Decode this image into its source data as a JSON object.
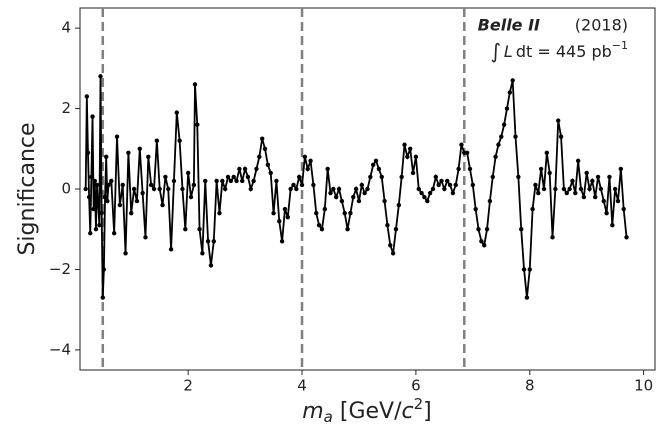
{
  "chart_data": {
    "type": "line",
    "x_label": [
      "m",
      "a",
      " [GeV/",
      "c",
      "2",
      "]"
    ],
    "y_label": "Significance",
    "annotation": {
      "experiment": "Belle II",
      "year": "(2018)",
      "luminosity": [
        "∫",
        "L",
        "dt = 445 pb",
        "−1"
      ]
    },
    "vlines": [
      0.5,
      4.0,
      6.85
    ],
    "xlim": [
      0.1,
      10.2
    ],
    "ylim": [
      -4.5,
      4.5
    ],
    "xticks": [
      2,
      4,
      6,
      8,
      10
    ],
    "yticks": [
      {
        "value": -4,
        "label": "−4"
      },
      {
        "value": -2,
        "label": "−2"
      },
      0,
      2,
      4
    ],
    "series": [
      {
        "color": "#000000",
        "x": [
          0.2,
          0.22,
          0.24,
          0.26,
          0.28,
          0.3,
          0.32,
          0.34,
          0.36,
          0.38,
          0.4,
          0.42,
          0.44,
          0.46,
          0.48,
          0.5,
          0.52,
          0.54,
          0.56,
          0.58,
          0.6,
          0.65,
          0.7,
          0.75,
          0.8,
          0.85,
          0.9,
          0.95,
          1.0,
          1.05,
          1.1,
          1.15,
          1.2,
          1.25,
          1.3,
          1.35,
          1.4,
          1.45,
          1.5,
          1.55,
          1.6,
          1.65,
          1.7,
          1.75,
          1.8,
          1.85,
          1.9,
          1.95,
          2.0,
          2.05,
          2.1,
          2.12,
          2.16,
          2.2,
          2.25,
          2.3,
          2.35,
          2.4,
          2.45,
          2.5,
          2.55,
          2.6,
          2.65,
          2.7,
          2.75,
          2.8,
          2.85,
          2.9,
          2.95,
          3.0,
          3.05,
          3.1,
          3.15,
          3.2,
          3.25,
          3.3,
          3.35,
          3.4,
          3.45,
          3.5,
          3.55,
          3.6,
          3.65,
          3.7,
          3.75,
          3.8,
          3.85,
          3.9,
          3.95,
          4.0,
          4.05,
          4.1,
          4.15,
          4.2,
          4.25,
          4.3,
          4.35,
          4.4,
          4.45,
          4.5,
          4.55,
          4.6,
          4.65,
          4.7,
          4.75,
          4.8,
          4.85,
          4.9,
          4.95,
          5.0,
          5.05,
          5.1,
          5.15,
          5.2,
          5.25,
          5.3,
          5.35,
          5.4,
          5.45,
          5.5,
          5.55,
          5.6,
          5.65,
          5.7,
          5.75,
          5.8,
          5.85,
          5.9,
          5.95,
          6.0,
          6.05,
          6.1,
          6.15,
          6.2,
          6.25,
          6.3,
          6.35,
          6.4,
          6.45,
          6.5,
          6.55,
          6.6,
          6.65,
          6.7,
          6.75,
          6.8,
          6.85,
          6.9,
          6.95,
          7.0,
          7.05,
          7.1,
          7.15,
          7.2,
          7.25,
          7.3,
          7.35,
          7.4,
          7.45,
          7.5,
          7.55,
          7.6,
          7.65,
          7.7,
          7.75,
          7.8,
          7.85,
          7.9,
          7.95,
          8.0,
          8.05,
          8.1,
          8.15,
          8.2,
          8.25,
          8.3,
          8.35,
          8.4,
          8.45,
          8.5,
          8.55,
          8.6,
          8.65,
          8.7,
          8.75,
          8.8,
          8.85,
          8.9,
          8.95,
          9.0,
          9.05,
          9.1,
          9.15,
          9.2,
          9.25,
          9.3,
          9.35,
          9.4,
          9.45,
          9.5,
          9.55,
          9.6,
          9.65,
          9.7
        ],
        "values": [
          0,
          2.3,
          0.9,
          -0.2,
          -1.1,
          0.3,
          1.8,
          -0.5,
          0.2,
          -1.0,
          0.1,
          -0.4,
          -0.9,
          2.8,
          -0.6,
          -2.7,
          -2.0,
          -0.2,
          0.8,
          -0.3,
          0.1,
          0.2,
          -1.1,
          1.3,
          -0.4,
          0.1,
          -1.6,
          0.9,
          -0.6,
          0.0,
          -0.3,
          1.0,
          -0.1,
          -1.2,
          0.8,
          0.1,
          0.0,
          1.2,
          0.0,
          -0.4,
          0.3,
          0.0,
          -1.5,
          0.2,
          1.9,
          1.2,
          0.0,
          -1.0,
          0.4,
          -0.2,
          0.1,
          2.6,
          1.6,
          -1.0,
          -1.6,
          0.2,
          -1.3,
          -1.9,
          -1.3,
          0.2,
          -0.6,
          0.2,
          0.0,
          0.3,
          0.2,
          0.3,
          0.2,
          0.5,
          0.2,
          0.5,
          0.3,
          0.0,
          0.2,
          0.5,
          0.8,
          1.25,
          1.0,
          0.6,
          0.4,
          -0.6,
          0.2,
          -0.8,
          -1.3,
          -0.5,
          -0.7,
          0.0,
          0.1,
          0.0,
          0.3,
          0.1,
          0.8,
          0.5,
          0.7,
          0.1,
          -0.6,
          -0.9,
          -1.0,
          -0.5,
          0.5,
          -0.1,
          0.0,
          -0.2,
          0.0,
          -0.3,
          -0.6,
          -1.0,
          -0.6,
          -0.2,
          0.0,
          -0.3,
          0.1,
          -0.1,
          0.0,
          0.3,
          0.6,
          0.7,
          0.5,
          0.3,
          -0.3,
          -0.9,
          -1.4,
          -1.6,
          -1.0,
          -0.4,
          0.3,
          1.1,
          0.8,
          1.0,
          0.4,
          0.8,
          0.0,
          -0.1,
          -0.2,
          -0.3,
          -0.1,
          0.0,
          0.3,
          0.1,
          0.2,
          0.0,
          0.2,
          0.1,
          -0.1,
          0.1,
          0.5,
          1.1,
          0.9,
          0.9,
          0.5,
          0.1,
          -0.5,
          -1.0,
          -1.3,
          -1.4,
          -1.0,
          -0.3,
          0.3,
          0.8,
          1.1,
          1.3,
          1.6,
          2.0,
          2.4,
          2.7,
          1.3,
          0.3,
          -1.0,
          -2.0,
          -2.7,
          -2.0,
          -0.5,
          0.1,
          -0.1,
          0.5,
          0.0,
          0.9,
          0.4,
          -1.2,
          0.0,
          1.7,
          1.3,
          0.0,
          -0.1,
          0.0,
          0.2,
          -0.1,
          0.7,
          0.0,
          -0.2,
          0.4,
          0.0,
          0.2,
          -0.2,
          0.3,
          0.0,
          -0.3,
          -0.6,
          0.3,
          -0.9,
          0.0,
          -0.3,
          0.5,
          -0.5,
          -1.2
        ]
      }
    ]
  }
}
